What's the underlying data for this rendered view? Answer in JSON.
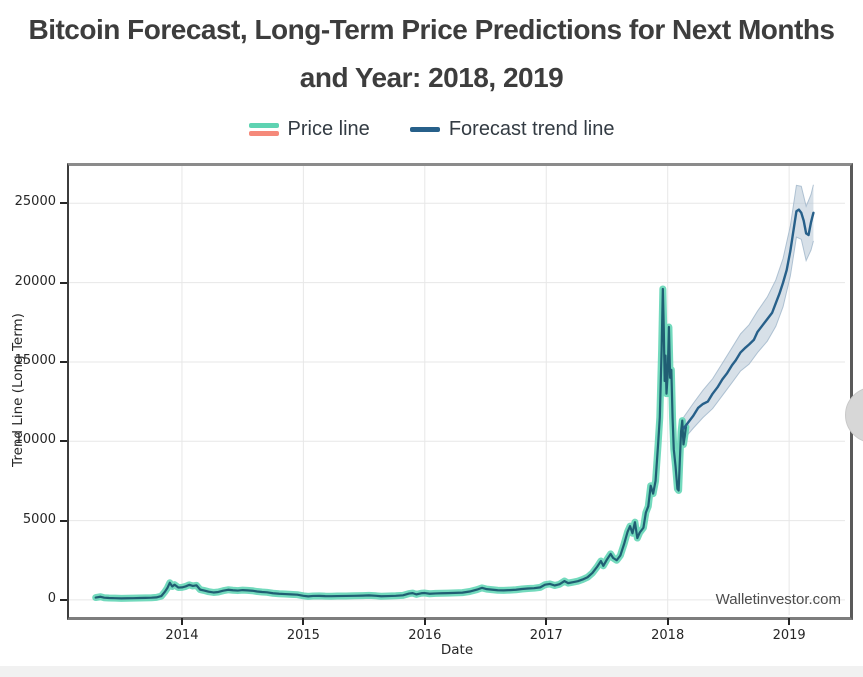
{
  "title": {
    "bold1": "Bitcoin",
    "reg1": " Forecast, ",
    "bold2": "Long-Term",
    "reg2": " Price Predictions for Next Months",
    "line2": "and Year: 2018, 2019"
  },
  "legend": {
    "price_label": "Price line",
    "forecast_label": "Forecast trend line",
    "price_swatch_colors": [
      "#5ed3b2",
      "#f5897a"
    ],
    "forecast_swatch_color": "#27608a"
  },
  "chart_data": {
    "type": "line",
    "title": "Bitcoin Forecast, Long-Term Price Predictions for Next Months and Year: 2018, 2019",
    "xlabel": "Date",
    "ylabel": "Trend Line (Long Term)",
    "watermark": "Walletinvestor.com",
    "grid": true,
    "legend_position": "top-center",
    "x_range": [
      2013.07,
      2019.46
    ],
    "y_range": [
      -950,
      27350
    ],
    "x_tick_values": [
      2014,
      2015,
      2016,
      2017,
      2018,
      2019
    ],
    "x_tick_labels": [
      "2014",
      "2015",
      "2016",
      "2017",
      "2018",
      "2019"
    ],
    "y_tick_values": [
      0,
      5000,
      10000,
      15000,
      20000,
      25000
    ],
    "y_tick_labels": [
      "0",
      "5000",
      "10000",
      "15000",
      "20000",
      "25000"
    ],
    "series": [
      {
        "name": "Price line",
        "line_color": "#205e73",
        "glow_color": "#5bd4b2",
        "points": [
          [
            2013.29,
            150
          ],
          [
            2013.33,
            200
          ],
          [
            2013.36,
            140
          ],
          [
            2013.4,
            120
          ],
          [
            2013.45,
            110
          ],
          [
            2013.5,
            100
          ],
          [
            2013.55,
            105
          ],
          [
            2013.6,
            110
          ],
          [
            2013.65,
            120
          ],
          [
            2013.7,
            130
          ],
          [
            2013.75,
            140
          ],
          [
            2013.79,
            160
          ],
          [
            2013.83,
            240
          ],
          [
            2013.86,
            520
          ],
          [
            2013.88,
            750
          ],
          [
            2013.9,
            1080
          ],
          [
            2013.92,
            850
          ],
          [
            2013.94,
            960
          ],
          [
            2013.97,
            780
          ],
          [
            2014.0,
            790
          ],
          [
            2014.03,
            850
          ],
          [
            2014.06,
            950
          ],
          [
            2014.09,
            880
          ],
          [
            2014.12,
            920
          ],
          [
            2014.15,
            650
          ],
          [
            2014.18,
            600
          ],
          [
            2014.22,
            520
          ],
          [
            2014.26,
            470
          ],
          [
            2014.3,
            500
          ],
          [
            2014.34,
            580
          ],
          [
            2014.38,
            640
          ],
          [
            2014.42,
            610
          ],
          [
            2014.46,
            590
          ],
          [
            2014.5,
            620
          ],
          [
            2014.54,
            600
          ],
          [
            2014.58,
            580
          ],
          [
            2014.62,
            530
          ],
          [
            2014.66,
            500
          ],
          [
            2014.7,
            480
          ],
          [
            2014.75,
            420
          ],
          [
            2014.8,
            390
          ],
          [
            2014.85,
            370
          ],
          [
            2014.9,
            350
          ],
          [
            2014.95,
            330
          ],
          [
            2015.0,
            260
          ],
          [
            2015.04,
            225
          ],
          [
            2015.08,
            250
          ],
          [
            2015.13,
            255
          ],
          [
            2015.18,
            240
          ],
          [
            2015.23,
            235
          ],
          [
            2015.28,
            245
          ],
          [
            2015.35,
            250
          ],
          [
            2015.42,
            260
          ],
          [
            2015.49,
            270
          ],
          [
            2015.54,
            285
          ],
          [
            2015.6,
            260
          ],
          [
            2015.64,
            230
          ],
          [
            2015.7,
            245
          ],
          [
            2015.76,
            260
          ],
          [
            2015.82,
            290
          ],
          [
            2015.87,
            400
          ],
          [
            2015.9,
            430
          ],
          [
            2015.93,
            350
          ],
          [
            2015.97,
            420
          ],
          [
            2016.0,
            435
          ],
          [
            2016.04,
            390
          ],
          [
            2016.09,
            410
          ],
          [
            2016.14,
            420
          ],
          [
            2016.19,
            430
          ],
          [
            2016.25,
            445
          ],
          [
            2016.31,
            460
          ],
          [
            2016.37,
            530
          ],
          [
            2016.43,
            650
          ],
          [
            2016.47,
            760
          ],
          [
            2016.51,
            680
          ],
          [
            2016.55,
            650
          ],
          [
            2016.6,
            610
          ],
          [
            2016.65,
            600
          ],
          [
            2016.7,
            620
          ],
          [
            2016.75,
            640
          ],
          [
            2016.8,
            690
          ],
          [
            2016.85,
            720
          ],
          [
            2016.9,
            740
          ],
          [
            2016.95,
            790
          ],
          [
            2016.99,
            960
          ],
          [
            2017.03,
            1010
          ],
          [
            2017.07,
            910
          ],
          [
            2017.11,
            990
          ],
          [
            2017.15,
            1190
          ],
          [
            2017.18,
            1060
          ],
          [
            2017.22,
            1120
          ],
          [
            2017.26,
            1180
          ],
          [
            2017.3,
            1290
          ],
          [
            2017.34,
            1430
          ],
          [
            2017.38,
            1700
          ],
          [
            2017.42,
            2100
          ],
          [
            2017.45,
            2450
          ],
          [
            2017.47,
            2150
          ],
          [
            2017.5,
            2550
          ],
          [
            2017.53,
            2900
          ],
          [
            2017.55,
            2650
          ],
          [
            2017.58,
            2500
          ],
          [
            2017.61,
            2800
          ],
          [
            2017.64,
            3500
          ],
          [
            2017.67,
            4300
          ],
          [
            2017.69,
            4650
          ],
          [
            2017.71,
            4200
          ],
          [
            2017.73,
            4900
          ],
          [
            2017.75,
            3900
          ],
          [
            2017.77,
            4250
          ],
          [
            2017.8,
            4550
          ],
          [
            2017.82,
            5500
          ],
          [
            2017.84,
            5900
          ],
          [
            2017.86,
            7200
          ],
          [
            2017.88,
            6700
          ],
          [
            2017.9,
            7500
          ],
          [
            2017.92,
            9700
          ],
          [
            2017.935,
            11500
          ],
          [
            2017.95,
            15800
          ],
          [
            2017.96,
            19600
          ],
          [
            2017.968,
            17000
          ],
          [
            2017.975,
            13800
          ],
          [
            2017.982,
            15400
          ],
          [
            2017.99,
            13000
          ],
          [
            2018.0,
            14200
          ],
          [
            2018.01,
            17200
          ],
          [
            2018.02,
            14000
          ],
          [
            2018.03,
            14500
          ],
          [
            2018.04,
            11500
          ],
          [
            2018.05,
            9500
          ],
          [
            2018.065,
            8400
          ],
          [
            2018.08,
            7000
          ],
          [
            2018.09,
            6900
          ],
          [
            2018.1,
            8800
          ],
          [
            2018.11,
            10600
          ],
          [
            2018.12,
            11300
          ],
          [
            2018.13,
            9800
          ],
          [
            2018.14,
            10300
          ],
          [
            2018.15,
            10900
          ]
        ]
      },
      {
        "name": "Forecast trend line",
        "line_color": "#27608a",
        "band_color": "#b6c7d6",
        "band_edge_color": "#9fb5c9",
        "points": [
          [
            2018.13,
            10800
          ],
          [
            2018.17,
            11200
          ],
          [
            2018.21,
            11600
          ],
          [
            2018.25,
            12100
          ],
          [
            2018.29,
            12350
          ],
          [
            2018.33,
            12500
          ],
          [
            2018.37,
            13000
          ],
          [
            2018.41,
            13400
          ],
          [
            2018.45,
            13900
          ],
          [
            2018.49,
            14300
          ],
          [
            2018.53,
            14800
          ],
          [
            2018.56,
            15100
          ],
          [
            2018.6,
            15600
          ],
          [
            2018.64,
            15900
          ],
          [
            2018.67,
            16100
          ],
          [
            2018.71,
            16400
          ],
          [
            2018.74,
            16900
          ],
          [
            2018.78,
            17300
          ],
          [
            2018.82,
            17700
          ],
          [
            2018.86,
            18100
          ],
          [
            2018.89,
            18700
          ],
          [
            2018.92,
            19300
          ],
          [
            2018.95,
            20000
          ],
          [
            2018.98,
            20800
          ],
          [
            2019.01,
            22000
          ],
          [
            2019.04,
            23500
          ],
          [
            2019.06,
            24500
          ],
          [
            2019.08,
            24600
          ],
          [
            2019.1,
            24400
          ],
          [
            2019.12,
            23900
          ],
          [
            2019.14,
            23100
          ],
          [
            2019.16,
            23000
          ],
          [
            2019.18,
            23800
          ],
          [
            2019.2,
            24400
          ]
        ],
        "band": [
          [
            2018.13,
            10100,
            11500
          ],
          [
            2018.21,
            10820,
            12380
          ],
          [
            2018.29,
            11490,
            13210
          ],
          [
            2018.37,
            12060,
            13940
          ],
          [
            2018.45,
            12880,
            14920
          ],
          [
            2018.53,
            13700,
            15900
          ],
          [
            2018.6,
            14430,
            16770
          ],
          [
            2018.67,
            14860,
            17340
          ],
          [
            2018.74,
            15590,
            18210
          ],
          [
            2018.82,
            16310,
            19090
          ],
          [
            2018.89,
            17240,
            20160
          ],
          [
            2018.95,
            18480,
            21520
          ],
          [
            2019.01,
            20420,
            23580
          ],
          [
            2019.06,
            22870,
            26130
          ],
          [
            2019.1,
            22730,
            26070
          ],
          [
            2019.14,
            21390,
            24810
          ],
          [
            2019.18,
            22050,
            25550
          ],
          [
            2019.2,
            22630,
            26170
          ]
        ]
      }
    ]
  }
}
